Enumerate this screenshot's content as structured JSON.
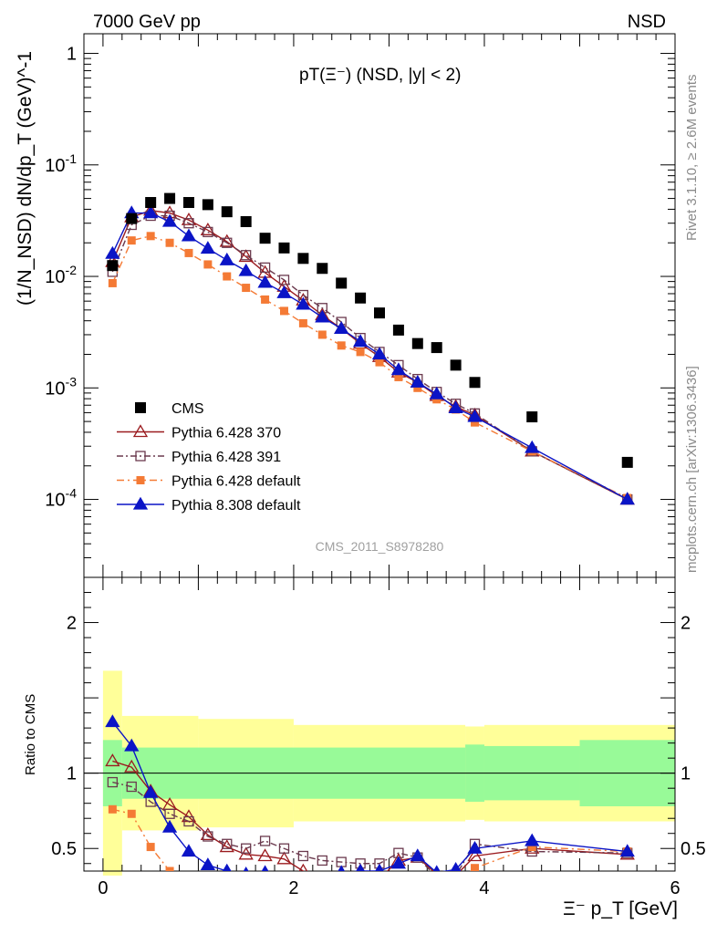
{
  "header": {
    "left": "7000 GeV pp",
    "right": "NSD"
  },
  "side": {
    "rivet": "Rivet 3.1.10, ≥ 2.6M events",
    "mcplots": "mcplots.cern.ch [arXiv:1306.3436]"
  },
  "chart_data": {
    "type": "scatter",
    "title": "pT(Ξ⁻) (NSD, |y| < 2)",
    "analysis_label": "CMS_2011_S8978280",
    "ylabel_main": "(1/N_NSD) dN/dp_T (GeV)^-1",
    "ylabel_ratio": "Ratio to CMS",
    "xlabel": "Ξ⁻ p_T [GeV]",
    "xlim": [
      -0.2,
      6.0
    ],
    "ylim_main": [
      2e-05,
      1.5
    ],
    "ylim_ratio": [
      0.35,
      2.3
    ],
    "log_y_main": true,
    "x_ticks": [
      "0",
      "2",
      "4",
      "6"
    ],
    "y_ticks_main": [
      "10^-4",
      "10^-3",
      "10^-2",
      "10^-1",
      "1"
    ],
    "y_ticks_ratio": [
      "0.5",
      "1",
      "2"
    ],
    "legend_position": "bottom-left",
    "x": [
      0.1,
      0.3,
      0.5,
      0.7,
      0.9,
      1.1,
      1.3,
      1.5,
      1.7,
      1.9,
      2.1,
      2.3,
      2.5,
      2.7,
      2.9,
      3.1,
      3.3,
      3.5,
      3.7,
      3.9,
      4.5,
      5.5
    ],
    "reference": {
      "name": "CMS",
      "color": "#000000",
      "values": [
        0.0125,
        0.033,
        0.046,
        0.05,
        0.046,
        0.044,
        0.038,
        0.031,
        0.022,
        0.018,
        0.0145,
        0.0118,
        0.0087,
        0.0064,
        0.0047,
        0.0033,
        0.0025,
        0.0023,
        0.0016,
        0.00112,
        0.00055,
        0.000215
      ]
    },
    "series": [
      {
        "name": "Pythia 6.428 370",
        "color": "#9b1b1f",
        "marker": "triangle-open",
        "dash": "",
        "values": [
          0.0135,
          0.034,
          0.039,
          0.037,
          0.032,
          0.026,
          0.0205,
          0.015,
          0.0108,
          0.0081,
          0.0061,
          0.0045,
          0.0034,
          0.0025,
          0.0019,
          0.00138,
          0.00112,
          0.00085,
          0.00068,
          0.00057,
          0.00027,
          0.0001
        ],
        "ratio": [
          1.08,
          1.04,
          0.88,
          0.79,
          0.71,
          0.59,
          0.51,
          0.46,
          0.45,
          0.43,
          0.35,
          0.28,
          0.27,
          0.35,
          0.3,
          0.42,
          0.44,
          0.33,
          0.32,
          0.45,
          0.5,
          0.46
        ]
      },
      {
        "name": "Pythia 6.428 391",
        "color": "#6b3a4e",
        "marker": "square-open",
        "dash": "7 3 2 3",
        "values": [
          0.011,
          0.029,
          0.035,
          0.035,
          0.03,
          0.025,
          0.02,
          0.0155,
          0.012,
          0.0093,
          0.0068,
          0.0052,
          0.0039,
          0.0028,
          0.0021,
          0.0016,
          0.0012,
          0.00092,
          0.00072,
          0.00059,
          0.00027,
          0.0001
        ],
        "ratio": [
          0.94,
          0.91,
          0.81,
          0.73,
          0.68,
          0.58,
          0.53,
          0.5,
          0.55,
          0.5,
          0.45,
          0.42,
          0.41,
          0.4,
          0.4,
          0.47,
          0.44,
          0.31,
          0.32,
          0.53,
          0.48,
          0.47
        ]
      },
      {
        "name": "Pythia 6.428 default",
        "color": "#f47a35",
        "marker": "square-filled",
        "dash": "8 4 2 4",
        "values": [
          0.0087,
          0.021,
          0.023,
          0.02,
          0.0162,
          0.0128,
          0.01,
          0.0079,
          0.0062,
          0.0049,
          0.0038,
          0.003,
          0.0024,
          0.0021,
          0.0017,
          0.00125,
          0.001,
          0.00079,
          0.00064,
          0.00049,
          0.00027,
          0.000103
        ],
        "ratio": [
          0.76,
          0.73,
          0.51,
          0.35,
          0.28,
          0.26,
          0.25,
          0.24,
          0.24,
          0.23,
          0.22,
          0.2,
          0.21,
          0.22,
          0.23,
          0.24,
          0.25,
          0.26,
          0.27,
          0.37,
          0.51,
          0.48
        ]
      },
      {
        "name": "Pythia 8.308 default",
        "color": "#0b14c6",
        "marker": "triangle-filled",
        "dash": "",
        "values": [
          0.016,
          0.037,
          0.037,
          0.031,
          0.023,
          0.0178,
          0.014,
          0.0112,
          0.0088,
          0.0071,
          0.0056,
          0.0043,
          0.0034,
          0.0026,
          0.002,
          0.00145,
          0.00112,
          0.00088,
          0.00066,
          0.00055,
          0.00029,
          0.0001
        ],
        "ratio": [
          1.34,
          1.18,
          0.87,
          0.64,
          0.48,
          0.39,
          0.35,
          0.33,
          0.34,
          0.3,
          0.29,
          0.3,
          0.34,
          0.35,
          0.35,
          0.4,
          0.45,
          0.34,
          0.36,
          0.5,
          0.55,
          0.48
        ]
      }
    ]
  }
}
